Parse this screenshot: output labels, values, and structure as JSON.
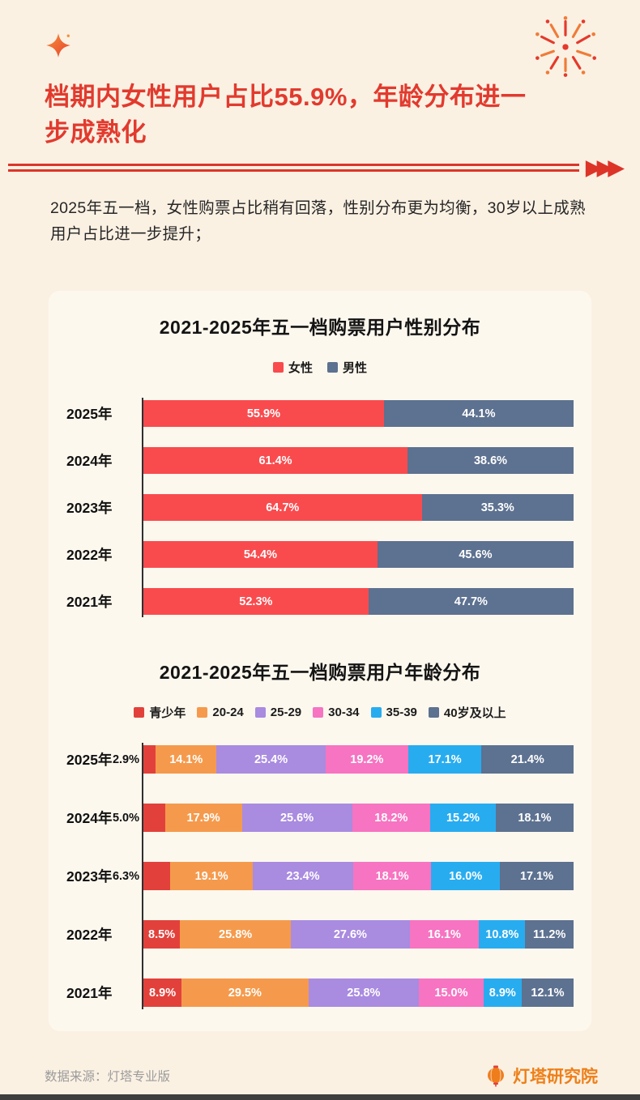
{
  "page": {
    "title_lines": [
      "档期内女性用户占比55.9%，年龄分布进一",
      "步成熟化"
    ],
    "intro": "2025年五一档，女性购票占比稍有回落，性别分布更为均衡，30岁以上成熟用户占比进一步提升；",
    "divider_arrows": "▶▶▶",
    "footer": {
      "source": "数据来源：灯塔专业版",
      "brand": "灯塔研究院"
    }
  },
  "colors": {
    "page_bg": "#fbf1e3",
    "card_bg": "#fdf8ee",
    "title_red": "#e23a2e",
    "divider_red": "#dd3428",
    "brand_orange": "#ee7f18",
    "female_red": "#f94b4e",
    "male_slate": "#5d7190"
  },
  "icons": {
    "sparkle": "sparkle-icon",
    "fireworks": "fireworks-icon",
    "lantern": "lantern-icon"
  },
  "chart_data": [
    {
      "type": "bar",
      "orientation": "horizontal-stacked",
      "title": "2021-2025年五一档购票用户性别分布",
      "categories": [
        "2025年",
        "2024年",
        "2023年",
        "2022年",
        "2021年"
      ],
      "series": [
        {
          "name": "女性",
          "color": "#f94b4e",
          "values": [
            55.9,
            61.4,
            64.7,
            54.4,
            52.3
          ]
        },
        {
          "name": "男性",
          "color": "#5d7190",
          "values": [
            44.1,
            38.6,
            35.3,
            45.6,
            47.7
          ]
        }
      ],
      "xlim": [
        0,
        100
      ],
      "grid": false,
      "legend_position": "top",
      "value_suffix": "%"
    },
    {
      "type": "bar",
      "orientation": "horizontal-stacked",
      "title": "2021-2025年五一档购票用户年龄分布",
      "categories": [
        "2025年",
        "2024年",
        "2023年",
        "2022年",
        "2021年"
      ],
      "series": [
        {
          "name": "青少年",
          "color": "#e2413b",
          "values": [
            2.9,
            5.0,
            6.3,
            8.5,
            8.9
          ]
        },
        {
          "name": "20-24",
          "color": "#f59a4c",
          "values": [
            14.1,
            17.9,
            19.1,
            25.8,
            29.5
          ]
        },
        {
          "name": "25-29",
          "color": "#a98be0",
          "values": [
            25.4,
            25.6,
            23.4,
            27.6,
            25.8
          ]
        },
        {
          "name": "30-34",
          "color": "#f674c1",
          "values": [
            19.2,
            18.2,
            18.1,
            16.1,
            15.0
          ]
        },
        {
          "name": "35-39",
          "color": "#28acf0",
          "values": [
            17.1,
            15.2,
            16.0,
            10.8,
            8.9
          ]
        },
        {
          "name": "40岁及以上",
          "color": "#5d7190",
          "values": [
            21.4,
            18.1,
            17.1,
            11.2,
            12.1
          ]
        }
      ],
      "xlim": [
        0,
        100
      ],
      "grid": false,
      "legend_position": "top",
      "value_suffix": "%",
      "label_outside_threshold": 7
    }
  ]
}
